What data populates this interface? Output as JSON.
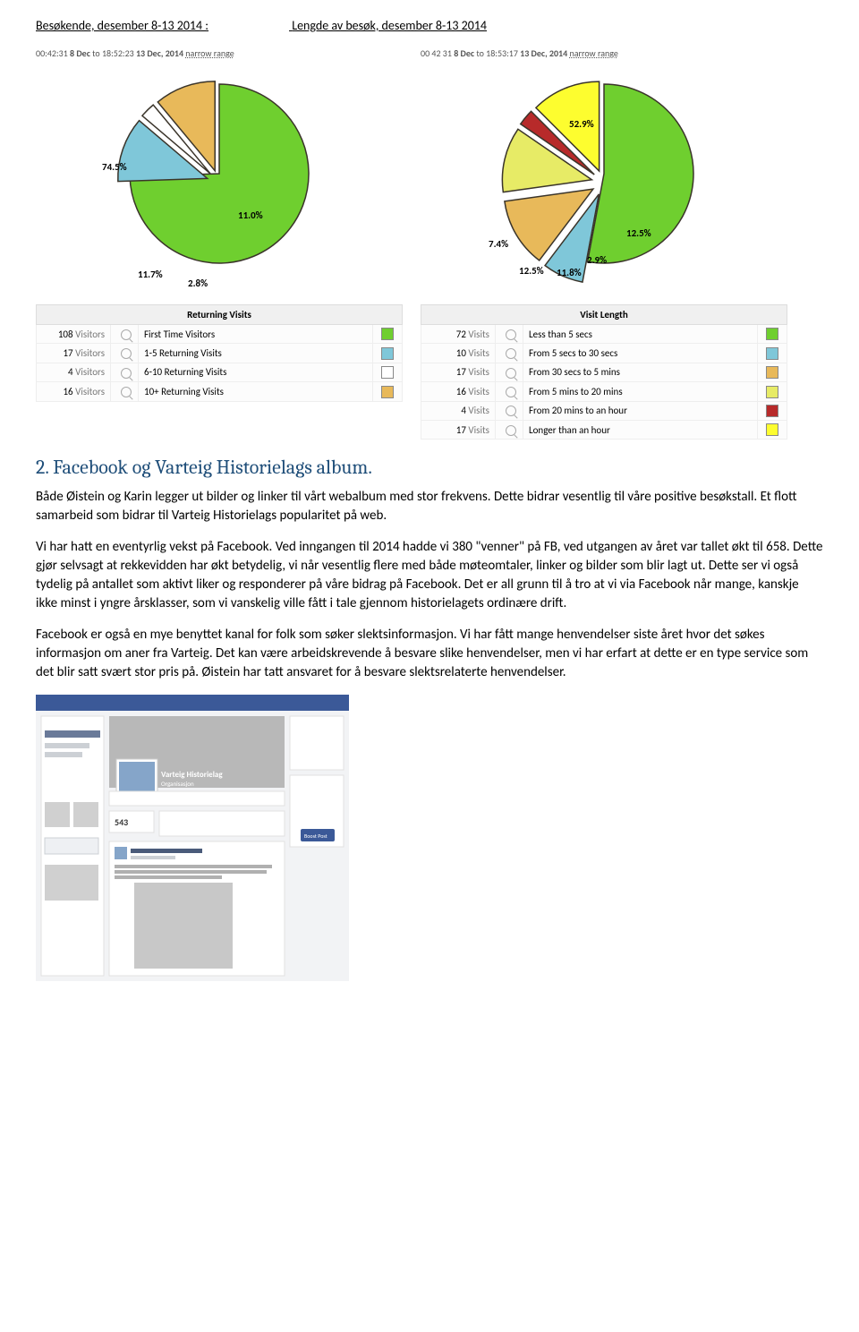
{
  "header": {
    "left": "Besøkende, desember 8-13 2014 :",
    "right": "Lengde av besøk, desember 8-13 2014"
  },
  "chart1": {
    "meta_start_time": "00:42:31",
    "meta_start_date": "8 Dec",
    "meta_to": "to",
    "meta_end_time": "18:52:23",
    "meta_end_date": "13 Dec, 2014",
    "meta_range": "narrow range",
    "type": "pie",
    "legend_title": "Returning Visits",
    "slices": [
      {
        "value": 108,
        "unit": "Visitors",
        "label": "First Time Visitors",
        "color": "#6fcf2f",
        "pct": "74.5%"
      },
      {
        "value": 17,
        "unit": "Visitors",
        "label": "1-5 Returning Visits",
        "color": "#7fc7d9",
        "pct": "11.7%"
      },
      {
        "value": 4,
        "unit": "Visitors",
        "label": "6-10 Returning Visits",
        "color": "#ffffff",
        "pct": "2.8%"
      },
      {
        "value": 16,
        "unit": "Visitors",
        "label": "10+ Returning Visits",
        "color": "#e8b95a",
        "pct": "11.0%"
      }
    ],
    "border_color": "#3a342a",
    "background": "#ffffff"
  },
  "chart2": {
    "meta_start_time": "00 42 31",
    "meta_start_date": "8 Dec",
    "meta_to": "to",
    "meta_end_time": "18:53:17",
    "meta_end_date": "13 Dec, 2014",
    "meta_range": "narrow range",
    "type": "pie",
    "legend_title": "Visit Length",
    "slices": [
      {
        "value": 72,
        "unit": "Visits",
        "label": "Less than 5 secs",
        "color": "#6fcf2f",
        "pct": "52.9%"
      },
      {
        "value": 10,
        "unit": "Visits",
        "label": "From 5 secs to 30 secs",
        "color": "#7fc7d9",
        "pct": "7.4%"
      },
      {
        "value": 17,
        "unit": "Visits",
        "label": "From 30 secs to 5 mins",
        "color": "#e8b95a",
        "pct": "12.5%"
      },
      {
        "value": 16,
        "unit": "Visits",
        "label": "From 5 mins to 20 mins",
        "color": "#e7eb66",
        "pct": "11.8%"
      },
      {
        "value": 4,
        "unit": "Visits",
        "label": "From 20 mins to an hour",
        "color": "#b72a2a",
        "pct": "2.9%"
      },
      {
        "value": 17,
        "unit": "Visits",
        "label": "Longer than an hour",
        "color": "#fdfd2f",
        "pct": "12.5%"
      }
    ],
    "border_color": "#3a342a",
    "background": "#ffffff"
  },
  "section": {
    "title": "2.  Facebook og Varteig Historielags album.",
    "para1": "Både Øistein og Karin legger ut bilder og linker til vårt webalbum med stor frekvens. Dette bidrar vesentlig til våre positive besøkstall. Et flott samarbeid som bidrar til Varteig Historielags popularitet på web.",
    "para2": "Vi har hatt en eventyrlig vekst på Facebook. Ved inngangen til 2014 hadde vi 380 \"venner\" på FB, ved utgangen av året var tallet økt til 658. Dette gjør selvsagt at rekkevidden har økt betydelig, vi når vesentlig flere med både møteomtaler, linker og bilder som blir lagt ut. Dette ser vi også tydelig på antallet som aktivt liker og responderer på våre bidrag på Facebook. Det er all grunn til å tro at vi via Facebook når mange, kanskje ikke minst i yngre årsklasser, som vi vanskelig ville fått i tale gjennom historielagets ordinære drift.",
    "para3": "Facebook er også en mye benyttet kanal for folk som søker slektsinformasjon. Vi har fått mange henvendelser siste året hvor det søkes informasjon om aner fra Varteig. Det kan være arbeidskrevende å besvare slike henvendelser, men vi har erfart at dette er en type service som det blir satt svært stor pris på. Øistein har tatt ansvaret for å besvare slektsrelaterte henvendelser."
  },
  "fb_thumb": {
    "topbar_color": "#3b5998",
    "page_name": "Varteig Historielag",
    "page_type": "Organisasjon",
    "likes": "543",
    "post_btn": "Boost Post",
    "cover_grayscale": "#b8b8b8"
  }
}
